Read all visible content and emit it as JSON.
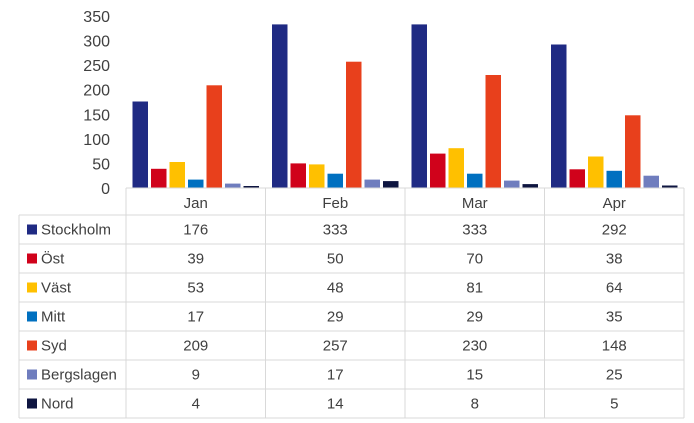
{
  "chart_data": {
    "type": "bar",
    "title": "",
    "xlabel": "",
    "ylabel": "",
    "categories": [
      "Jan",
      "Feb",
      "Mar",
      "Apr"
    ],
    "ylim": [
      0,
      350
    ],
    "yticks": [
      "0",
      "50",
      "100",
      "150",
      "200",
      "250",
      "300",
      "350"
    ],
    "grid": false,
    "legend": "data-table",
    "series": [
      {
        "name": "Stockholm",
        "color": "#1F2A83",
        "values": [
          176,
          333,
          333,
          292
        ]
      },
      {
        "name": "Öst",
        "color": "#D0021B",
        "values": [
          39,
          50,
          70,
          38
        ]
      },
      {
        "name": "Väst",
        "color": "#FFC000",
        "values": [
          53,
          48,
          81,
          64
        ]
      },
      {
        "name": "Mitt",
        "color": "#0070C0",
        "values": [
          17,
          29,
          29,
          35
        ]
      },
      {
        "name": "Syd",
        "color": "#E8401C",
        "values": [
          209,
          257,
          230,
          148
        ]
      },
      {
        "name": "Bergslagen",
        "color": "#6F7DBE",
        "values": [
          9,
          17,
          15,
          25
        ]
      },
      {
        "name": "Nord",
        "color": "#0E1540",
        "values": [
          4,
          14,
          8,
          5
        ]
      }
    ]
  }
}
